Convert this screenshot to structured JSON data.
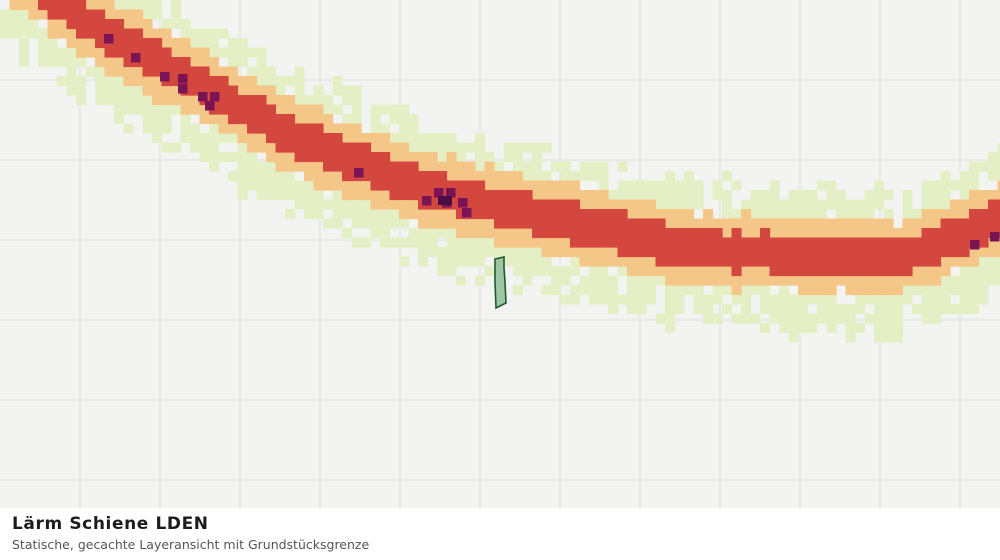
{
  "title": "Lärm Schiene LDEN",
  "subtitle": "Statische, gecachte Layeransicht mit Grundstücksgrenze",
  "colors": {
    "background": "#f3f4f2",
    "grid": "#dcdedb",
    "noise_low": "#e5efc6",
    "noise_mid": "#f4c687",
    "noise_high": "#d4473e",
    "noise_very_high": "#7a1455",
    "noise_extreme": "#4a0c44",
    "parcel_fill": "#9cc6a4",
    "parcel_stroke": "#1e5a2e"
  }
}
